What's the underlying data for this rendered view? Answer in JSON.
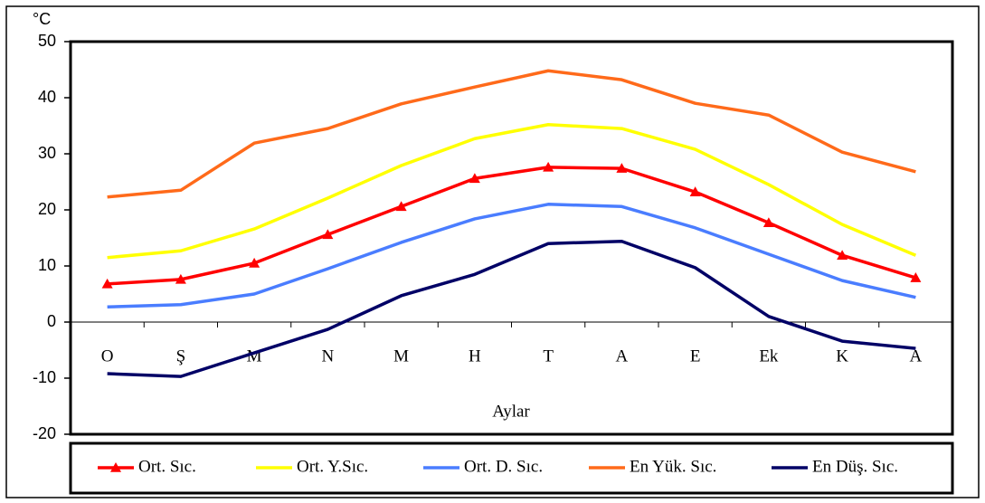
{
  "chart_data": {
    "type": "line",
    "y_unit_label": "°C",
    "x_label": "Aylar",
    "categories": [
      "O",
      "Ş",
      "M",
      "N",
      "M",
      "H",
      "T",
      "A",
      "E",
      "Ek",
      "K",
      "A"
    ],
    "series": [
      {
        "name": "Ort. Sıc.",
        "color": "#ff0000",
        "marker": "triangle",
        "values": [
          6.8,
          7.6,
          10.5,
          15.6,
          20.6,
          25.6,
          27.6,
          27.4,
          23.2,
          17.7,
          11.9,
          7.9
        ]
      },
      {
        "name": "Ort. Y.Sıc.",
        "color": "#ffff00",
        "values": [
          11.5,
          12.7,
          16.6,
          22.1,
          27.9,
          32.7,
          35.2,
          34.5,
          30.8,
          24.5,
          17.4,
          11.9
        ]
      },
      {
        "name": "Ort. D. Sıc.",
        "color": "#4a7dff",
        "values": [
          2.7,
          3.1,
          5.0,
          9.5,
          14.2,
          18.4,
          21.0,
          20.6,
          16.8,
          12.1,
          7.4,
          4.4
        ]
      },
      {
        "name": "En Yük. Sıc.",
        "color": "#ff6a1a",
        "values": [
          22.3,
          23.5,
          31.9,
          34.5,
          38.9,
          41.9,
          44.8,
          43.2,
          39.0,
          36.9,
          30.3,
          26.8
        ]
      },
      {
        "name": "En Düş. Sıc.",
        "color": "#000066",
        "values": [
          -9.2,
          -9.7,
          -5.5,
          -1.3,
          4.7,
          8.5,
          14.0,
          14.4,
          9.7,
          1.0,
          -3.4,
          -4.7
        ]
      }
    ],
    "ylim": [
      -20,
      50
    ],
    "yticks": [
      -20,
      -10,
      0,
      10,
      20,
      30,
      40,
      50
    ],
    "grid": false,
    "legend": "bottom"
  }
}
